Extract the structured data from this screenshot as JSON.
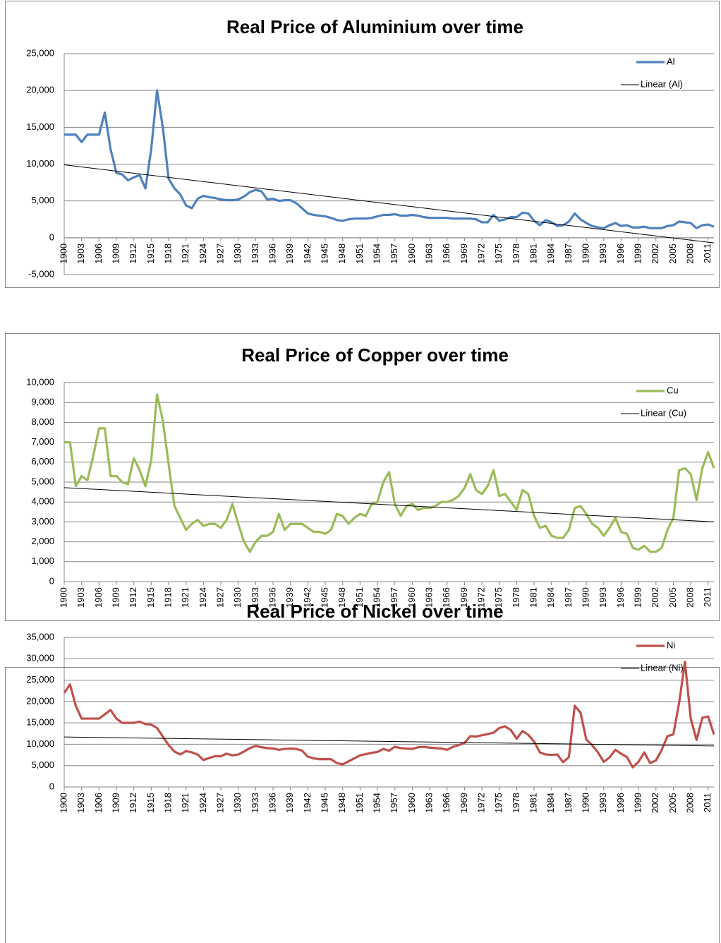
{
  "chart_data": [
    {
      "type": "line",
      "title": "Real Price of Aluminium over time",
      "x": [
        1900,
        1901,
        1902,
        1903,
        1904,
        1905,
        1906,
        1907,
        1908,
        1909,
        1910,
        1911,
        1912,
        1913,
        1914,
        1915,
        1916,
        1917,
        1918,
        1919,
        1920,
        1921,
        1922,
        1923,
        1924,
        1925,
        1926,
        1927,
        1928,
        1929,
        1930,
        1931,
        1932,
        1933,
        1934,
        1935,
        1936,
        1937,
        1938,
        1939,
        1940,
        1941,
        1942,
        1943,
        1944,
        1945,
        1946,
        1947,
        1948,
        1949,
        1950,
        1951,
        1952,
        1953,
        1954,
        1955,
        1956,
        1957,
        1958,
        1959,
        1960,
        1961,
        1962,
        1963,
        1964,
        1965,
        1966,
        1967,
        1968,
        1969,
        1970,
        1971,
        1972,
        1973,
        1974,
        1975,
        1976,
        1977,
        1978,
        1979,
        1980,
        1981,
        1982,
        1983,
        1984,
        1985,
        1986,
        1987,
        1988,
        1989,
        1990,
        1991,
        1992,
        1993,
        1994,
        1995,
        1996,
        1997,
        1998,
        1999,
        2000,
        2001,
        2002,
        2003,
        2004,
        2005,
        2006,
        2007,
        2008,
        2009,
        2010,
        2011,
        2012
      ],
      "series": [
        {
          "name": "Al",
          "color": "#4f81bd",
          "values": [
            14000,
            14000,
            14000,
            13000,
            14000,
            14000,
            14000,
            17000,
            12000,
            8800,
            8600,
            7800,
            8200,
            8500,
            6700,
            12000,
            20000,
            15000,
            8000,
            6700,
            5900,
            4400,
            4000,
            5300,
            5700,
            5500,
            5400,
            5200,
            5100,
            5100,
            5200,
            5600,
            6200,
            6500,
            6300,
            5200,
            5300,
            5000,
            5100,
            5100,
            4700,
            4000,
            3300,
            3100,
            3000,
            2900,
            2700,
            2400,
            2300,
            2500,
            2600,
            2600,
            2600,
            2700,
            2900,
            3100,
            3100,
            3200,
            3000,
            3000,
            3100,
            3000,
            2800,
            2700,
            2700,
            2700,
            2700,
            2600,
            2600,
            2600,
            2600,
            2500,
            2100,
            2100,
            3100,
            2300,
            2500,
            2800,
            2800,
            3400,
            3300,
            2300,
            1700,
            2400,
            2100,
            1600,
            1700,
            2200,
            3300,
            2500,
            2000,
            1600,
            1400,
            1300,
            1700,
            2000,
            1600,
            1700,
            1400,
            1400,
            1500,
            1300,
            1300,
            1300,
            1600,
            1700,
            2200,
            2100,
            2000,
            1300,
            1700,
            1800,
            1500
          ]
        }
      ],
      "trendline": {
        "name": "Linear (Al)",
        "color": "#000000",
        "x": [
          1900,
          2012
        ],
        "values": [
          9900,
          -700
        ]
      },
      "xlim": [
        1900,
        2012
      ],
      "xticks": [
        1900,
        1903,
        1906,
        1909,
        1912,
        1915,
        1918,
        1921,
        1924,
        1927,
        1930,
        1933,
        1936,
        1939,
        1942,
        1945,
        1948,
        1951,
        1954,
        1957,
        1960,
        1963,
        1966,
        1969,
        1972,
        1975,
        1978,
        1981,
        1984,
        1987,
        1990,
        1993,
        1996,
        1999,
        2002,
        2005,
        2008,
        2011
      ],
      "ylim": [
        -5000,
        25000
      ],
      "yticks": [
        {
          "value": -5000,
          "label": "-5,000"
        },
        0,
        {
          "value": 5000,
          "label": "5,000"
        },
        {
          "value": 10000,
          "label": "10,000"
        },
        {
          "value": 15000,
          "label": "15,000"
        },
        {
          "value": 20000,
          "label": "20,000"
        },
        {
          "value": 25000,
          "label": "25,000"
        }
      ],
      "grid": true,
      "legend": "top-right"
    },
    {
      "type": "line",
      "title": "Real Price of Copper over time",
      "x": [
        1900,
        1901,
        1902,
        1903,
        1904,
        1905,
        1906,
        1907,
        1908,
        1909,
        1910,
        1911,
        1912,
        1913,
        1914,
        1915,
        1916,
        1917,
        1918,
        1919,
        1920,
        1921,
        1922,
        1923,
        1924,
        1925,
        1926,
        1927,
        1928,
        1929,
        1930,
        1931,
        1932,
        1933,
        1934,
        1935,
        1936,
        1937,
        1938,
        1939,
        1940,
        1941,
        1942,
        1943,
        1944,
        1945,
        1946,
        1947,
        1948,
        1949,
        1950,
        1951,
        1952,
        1953,
        1954,
        1955,
        1956,
        1957,
        1958,
        1959,
        1960,
        1961,
        1962,
        1963,
        1964,
        1965,
        1966,
        1967,
        1968,
        1969,
        1970,
        1971,
        1972,
        1973,
        1974,
        1975,
        1976,
        1977,
        1978,
        1979,
        1980,
        1981,
        1982,
        1983,
        1984,
        1985,
        1986,
        1987,
        1988,
        1989,
        1990,
        1991,
        1992,
        1993,
        1994,
        1995,
        1996,
        1997,
        1998,
        1999,
        2000,
        2001,
        2002,
        2003,
        2004,
        2005,
        2006,
        2007,
        2008,
        2009,
        2010,
        2011,
        2012
      ],
      "series": [
        {
          "name": "Cu",
          "color": "#9bbb59",
          "values": [
            7000,
            7000,
            4800,
            5300,
            5100,
            6300,
            7700,
            7700,
            5300,
            5300,
            5000,
            4900,
            6200,
            5600,
            4800,
            6100,
            9400,
            8100,
            5900,
            3800,
            3200,
            2600,
            2900,
            3100,
            2800,
            2900,
            2900,
            2700,
            3100,
            3900,
            2900,
            2000,
            1500,
            2000,
            2300,
            2300,
            2500,
            3400,
            2600,
            2900,
            2900,
            2900,
            2700,
            2500,
            2500,
            2400,
            2600,
            3400,
            3300,
            2900,
            3200,
            3400,
            3300,
            3900,
            4000,
            5000,
            5500,
            3900,
            3300,
            3800,
            3900,
            3600,
            3700,
            3700,
            3800,
            4000,
            4000,
            4100,
            4300,
            4700,
            5400,
            4600,
            4400,
            4800,
            5600,
            4300,
            4400,
            4000,
            3600,
            4600,
            4400,
            3300,
            2700,
            2800,
            2300,
            2200,
            2200,
            2600,
            3700,
            3800,
            3400,
            2900,
            2700,
            2300,
            2700,
            3200,
            2500,
            2400,
            1700,
            1600,
            1800,
            1500,
            1500,
            1700,
            2600,
            3200,
            5600,
            5700,
            5400,
            4100,
            5700,
            6500,
            5700
          ]
        }
      ],
      "trendline": {
        "name": "Linear (Cu)",
        "color": "#000000",
        "x": [
          1900,
          2012
        ],
        "values": [
          4720,
          3000
        ]
      },
      "xlim": [
        1900,
        2012
      ],
      "xticks": [
        1900,
        1903,
        1906,
        1909,
        1912,
        1915,
        1918,
        1921,
        1924,
        1927,
        1930,
        1933,
        1936,
        1939,
        1942,
        1945,
        1948,
        1951,
        1954,
        1957,
        1960,
        1963,
        1966,
        1969,
        1972,
        1975,
        1978,
        1981,
        1984,
        1987,
        1990,
        1993,
        1996,
        1999,
        2002,
        2005,
        2008,
        2011
      ],
      "ylim": [
        0,
        10000
      ],
      "yticks": [
        0,
        {
          "value": 1000,
          "label": "1,000"
        },
        {
          "value": 2000,
          "label": "2,000"
        },
        {
          "value": 3000,
          "label": "3,000"
        },
        {
          "value": 4000,
          "label": "4,000"
        },
        {
          "value": 5000,
          "label": "5,000"
        },
        {
          "value": 6000,
          "label": "6,000"
        },
        {
          "value": 7000,
          "label": "7,000"
        },
        {
          "value": 8000,
          "label": "8,000"
        },
        {
          "value": 9000,
          "label": "9,000"
        },
        {
          "value": 10000,
          "label": "10,000"
        }
      ],
      "grid": true,
      "legend": "top-right"
    },
    {
      "type": "line",
      "title": "Real Price of Nickel over time",
      "x": [
        1900,
        1901,
        1902,
        1903,
        1904,
        1905,
        1906,
        1907,
        1908,
        1909,
        1910,
        1911,
        1912,
        1913,
        1914,
        1915,
        1916,
        1917,
        1918,
        1919,
        1920,
        1921,
        1922,
        1923,
        1924,
        1925,
        1926,
        1927,
        1928,
        1929,
        1930,
        1931,
        1932,
        1933,
        1934,
        1935,
        1936,
        1937,
        1938,
        1939,
        1940,
        1941,
        1942,
        1943,
        1944,
        1945,
        1946,
        1947,
        1948,
        1949,
        1950,
        1951,
        1952,
        1953,
        1954,
        1955,
        1956,
        1957,
        1958,
        1959,
        1960,
        1961,
        1962,
        1963,
        1964,
        1965,
        1966,
        1967,
        1968,
        1969,
        1970,
        1971,
        1972,
        1973,
        1974,
        1975,
        1976,
        1977,
        1978,
        1979,
        1980,
        1981,
        1982,
        1983,
        1984,
        1985,
        1986,
        1987,
        1988,
        1989,
        1990,
        1991,
        1992,
        1993,
        1994,
        1995,
        1996,
        1997,
        1998,
        1999,
        2000,
        2001,
        2002,
        2003,
        2004,
        2005,
        2006,
        2007,
        2008,
        2009,
        2010,
        2011,
        2012
      ],
      "series": [
        {
          "name": "Ni",
          "color": "#c0504d",
          "values": [
            22000,
            24000,
            19000,
            16000,
            16000,
            16000,
            16000,
            17000,
            18000,
            16000,
            15000,
            15000,
            15000,
            15300,
            14700,
            14600,
            13800,
            11800,
            9800,
            8300,
            7600,
            8400,
            8100,
            7600,
            6300,
            6800,
            7200,
            7200,
            7800,
            7400,
            7600,
            8300,
            9100,
            9600,
            9300,
            9100,
            9000,
            8700,
            8900,
            9000,
            8900,
            8500,
            7100,
            6700,
            6500,
            6500,
            6500,
            5600,
            5300,
            6000,
            6700,
            7400,
            7700,
            8000,
            8200,
            8900,
            8500,
            9400,
            9100,
            9000,
            8900,
            9300,
            9400,
            9200,
            9100,
            9000,
            8700,
            9400,
            9800,
            10300,
            11900,
            11800,
            12100,
            12400,
            12700,
            13800,
            14200,
            13300,
            11300,
            13100,
            12200,
            10600,
            8100,
            7600,
            7500,
            7600,
            5800,
            7000,
            19000,
            17400,
            11100,
            9800,
            8100,
            5900,
            6900,
            8700,
            7800,
            7000,
            4600,
            5900,
            8100,
            5600,
            6200,
            8700,
            11900,
            12300,
            19700,
            29300,
            16000,
            11000,
            16200,
            16500,
            12300
          ]
        }
      ],
      "trendline": {
        "name": "Linear (Ni)",
        "color": "#000000",
        "x": [
          1900,
          2012
        ],
        "values": [
          11700,
          9600
        ]
      },
      "xlim": [
        1900,
        2012
      ],
      "xticks": [
        1900,
        1903,
        1906,
        1909,
        1912,
        1915,
        1918,
        1921,
        1924,
        1927,
        1930,
        1933,
        1936,
        1939,
        1942,
        1945,
        1948,
        1951,
        1954,
        1957,
        1960,
        1963,
        1966,
        1969,
        1972,
        1975,
        1978,
        1981,
        1984,
        1987,
        1990,
        1993,
        1996,
        1999,
        2002,
        2005,
        2008,
        2011
      ],
      "ylim": [
        0,
        35000
      ],
      "yticks": [
        0,
        {
          "value": 5000,
          "label": "5,000"
        },
        {
          "value": 10000,
          "label": "10,000"
        },
        {
          "value": 15000,
          "label": "15,000"
        },
        {
          "value": 20000,
          "label": "20,000"
        },
        {
          "value": 25000,
          "label": "25,000"
        },
        {
          "value": 30000,
          "label": "30,000"
        },
        {
          "value": 35000,
          "label": "35,000"
        }
      ],
      "grid": true,
      "legend": "top-right"
    }
  ]
}
